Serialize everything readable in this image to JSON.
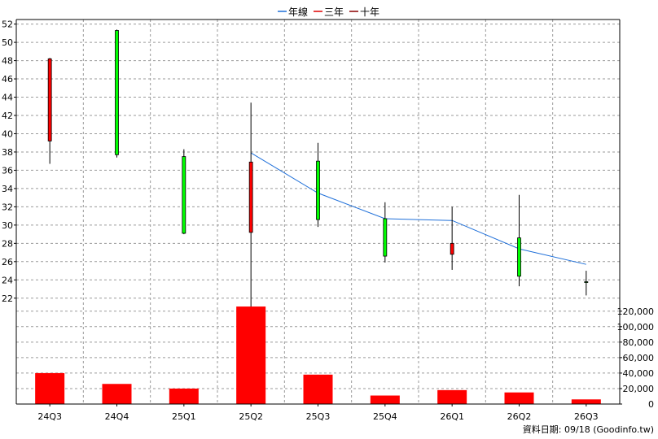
{
  "chart_data": {
    "type": "candlestick-with-volume",
    "categories": [
      "24Q3",
      "24Q4",
      "25Q1",
      "25Q2",
      "25Q3",
      "25Q4",
      "26Q1",
      "26Q2",
      "26Q3"
    ],
    "legend": [
      {
        "name": "年線",
        "color": "#1e6fd9"
      },
      {
        "name": "三年",
        "color": "#e00000"
      },
      {
        "name": "十年",
        "color": "#8b0000"
      }
    ],
    "legend_position": "top-center",
    "price_axis": {
      "ticks": [
        22,
        24,
        26,
        28,
        30,
        32,
        34,
        36,
        38,
        40,
        42,
        44,
        46,
        48,
        50,
        52
      ],
      "ylim": [
        21,
        52.5
      ]
    },
    "volume_axis": {
      "ticks": [
        "0",
        "20,000",
        "40,000",
        "60,000",
        "80,000",
        "100,000",
        "120,000"
      ],
      "ylim": [
        0,
        125000
      ]
    },
    "candles": [
      {
        "x": "24Q3",
        "open": 39.2,
        "high": 48.3,
        "low": 36.7,
        "close": 48.2,
        "color": "#ff0000"
      },
      {
        "x": "24Q4",
        "open": 51.3,
        "high": 51.4,
        "low": 37.4,
        "close": 37.7,
        "color": "#00ff00"
      },
      {
        "x": "25Q1",
        "open": 37.5,
        "high": 38.3,
        "low": 29.0,
        "close": 29.1,
        "color": "#00ff00"
      },
      {
        "x": "25Q2",
        "open": 29.2,
        "high": 43.4,
        "low": 21.0,
        "close": 36.9,
        "color": "#ff0000"
      },
      {
        "x": "25Q3",
        "open": 37.0,
        "high": 39.0,
        "low": 29.8,
        "close": 30.6,
        "color": "#00ff00"
      },
      {
        "x": "25Q4",
        "open": 30.7,
        "high": 32.5,
        "low": 25.9,
        "close": 26.6,
        "color": "#00ff00"
      },
      {
        "x": "26Q1",
        "open": 26.8,
        "high": 32.0,
        "low": 25.1,
        "close": 28.0,
        "color": "#ff0000"
      },
      {
        "x": "26Q2",
        "open": 28.6,
        "high": 33.3,
        "low": 23.3,
        "close": 24.4,
        "color": "#00ff00"
      },
      {
        "x": "26Q3",
        "open": 23.8,
        "high": 25.0,
        "low": 22.3,
        "close": 23.8,
        "color": "#00ff00"
      }
    ],
    "series": [
      {
        "name": "年線",
        "color": "#1e6fd9",
        "points": [
          {
            "x": "25Q2",
            "y": 37.9
          },
          {
            "x": "25Q3",
            "y": 33.5
          },
          {
            "x": "25Q4",
            "y": 30.7
          },
          {
            "x": "26Q1",
            "y": 30.5
          },
          {
            "x": "26Q2",
            "y": 27.4
          },
          {
            "x": "26Q3",
            "y": 25.7
          }
        ]
      }
    ],
    "volume": [
      40000,
      26000,
      20000,
      126000,
      38000,
      11000,
      18000,
      15000,
      6000
    ],
    "volume_color": "#ff0000",
    "grid": true
  },
  "source_note": "資料日期: 09/18  (Goodinfo.tw)"
}
